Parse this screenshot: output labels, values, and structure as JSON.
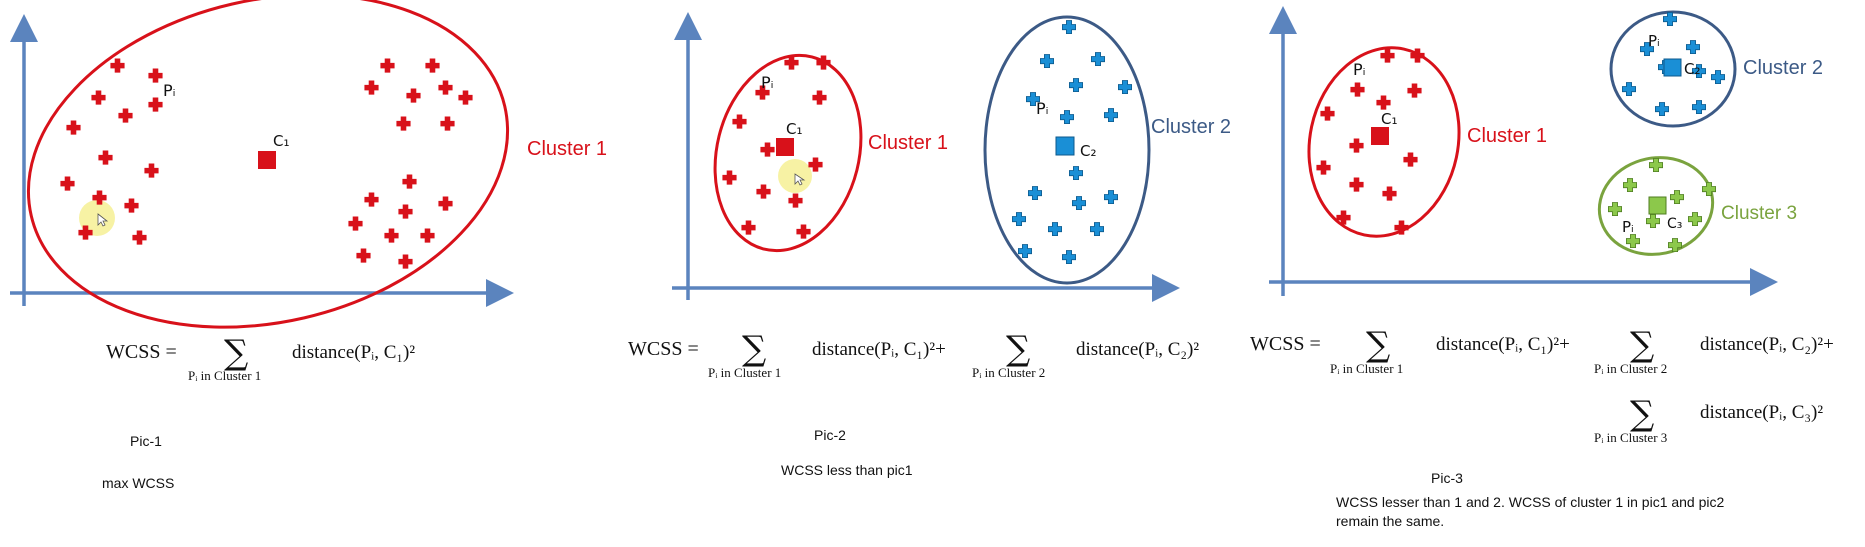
{
  "colors": {
    "axis": "#5b84be",
    "red": "#d8111a",
    "blue": "#1a8fd6",
    "green": "#78b43a",
    "cluster1_outline": "#d8111a",
    "cluster2_outline": "#3c5a86",
    "cluster3_outline": "#7aa33e",
    "highlight": "#f6f19a",
    "text": "#111111"
  },
  "panels": [
    {
      "id": "pic1",
      "points": {
        "pi": "Pᵢ"
      },
      "centroids": [
        {
          "label": "C₁",
          "color": "red"
        }
      ],
      "clusters": [
        {
          "label": "Cluster 1",
          "color": "red"
        }
      ],
      "formula": {
        "lhs": "WCSS =",
        "terms": [
          {
            "sub": "Pᵢ in Cluster 1",
            "body": "distance(Pᵢ, C₁)²"
          }
        ]
      },
      "caption": {
        "title": "Pic-1",
        "note": "max WCSS"
      }
    },
    {
      "id": "pic2",
      "points": {
        "pi": "Pᵢ"
      },
      "centroids": [
        {
          "label": "C₁",
          "color": "red"
        },
        {
          "label": "C₂",
          "color": "blue"
        }
      ],
      "clusters": [
        {
          "label": "Cluster 1",
          "color": "red"
        },
        {
          "label": "Cluster 2",
          "color": "blue"
        }
      ],
      "formula": {
        "lhs": "WCSS =",
        "terms": [
          {
            "sub": "Pᵢ in Cluster 1",
            "body": "distance(Pᵢ, C₁)²+"
          },
          {
            "sub": "Pᵢ in Cluster 2",
            "body": "distance(Pᵢ, C₂)²"
          }
        ]
      },
      "caption": {
        "title": "Pic-2",
        "note": "WCSS less than pic1"
      }
    },
    {
      "id": "pic3",
      "points": {
        "pi": "Pᵢ"
      },
      "centroids": [
        {
          "label": "C₁",
          "color": "red"
        },
        {
          "label": "C₂",
          "color": "blue"
        },
        {
          "label": "C₃",
          "color": "green"
        }
      ],
      "clusters": [
        {
          "label": "Cluster 1",
          "color": "red"
        },
        {
          "label": "Cluster 2",
          "color": "blue"
        },
        {
          "label": "Cluster 3",
          "color": "green"
        }
      ],
      "formula": {
        "lhs": "WCSS =",
        "terms": [
          {
            "sub": "Pᵢ in Cluster 1",
            "body": "distance(Pᵢ, C₁)²+"
          },
          {
            "sub": "Pᵢ in Cluster 2",
            "body": "distance(Pᵢ, C₂)²+"
          },
          {
            "sub": "Pᵢ in Cluster 3",
            "body": "distance(Pᵢ, C₃)²"
          }
        ]
      },
      "caption": {
        "title": "Pic-3",
        "note": "WCSS lesser than 1 and 2. WCSS of cluster 1 in pic1 and pic2 remain the same."
      }
    }
  ],
  "sigma": "∑"
}
